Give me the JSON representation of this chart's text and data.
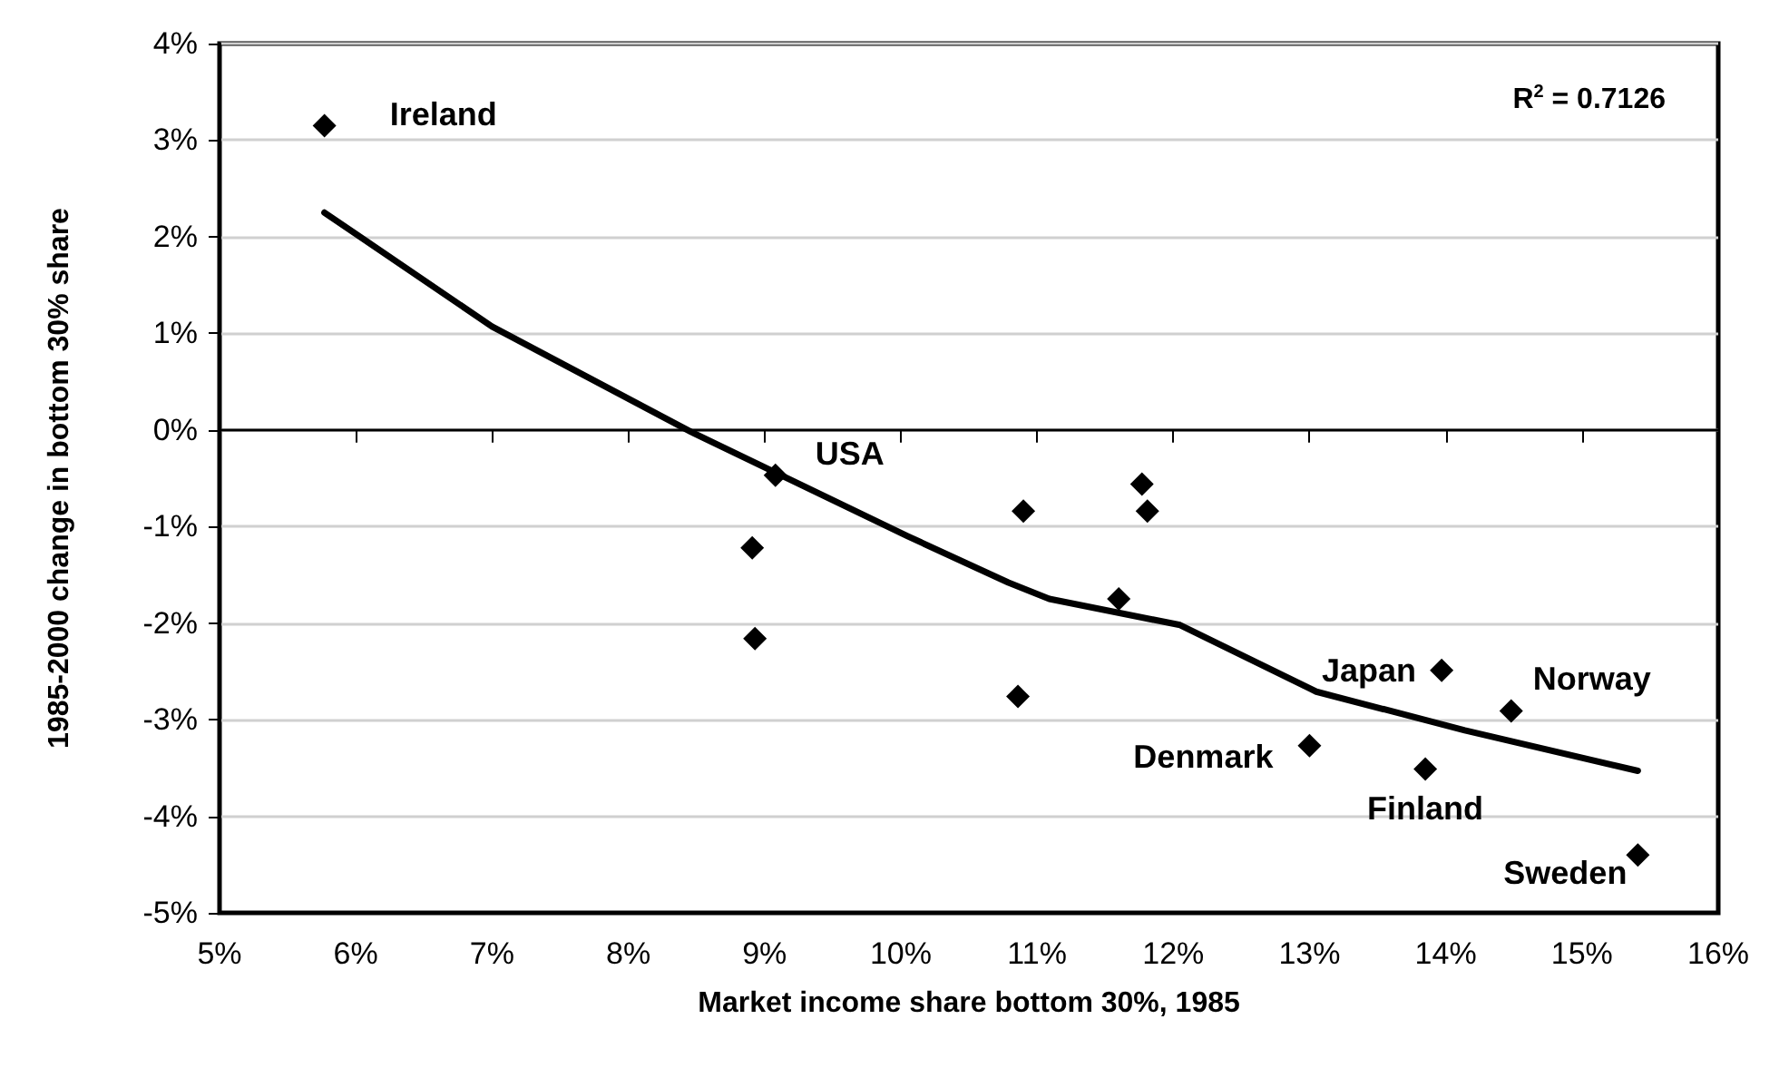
{
  "chart_data": {
    "type": "scatter",
    "xlabel": "Market income share bottom 30%, 1985",
    "ylabel": "1985-2000 change in bottom 30% share",
    "xlim": [
      5,
      16
    ],
    "xticks": [
      {
        "value": 5,
        "label": "5%"
      },
      {
        "value": 6,
        "label": "6%"
      },
      {
        "value": 7,
        "label": "7%"
      },
      {
        "value": 8,
        "label": "8%"
      },
      {
        "value": 9,
        "label": "9%"
      },
      {
        "value": 10,
        "label": "10%"
      },
      {
        "value": 11,
        "label": "11%"
      },
      {
        "value": 12,
        "label": "12%"
      },
      {
        "value": 13,
        "label": "13%"
      },
      {
        "value": 14,
        "label": "14%"
      },
      {
        "value": 15,
        "label": "15%"
      },
      {
        "value": 16,
        "label": "16%"
      }
    ],
    "ylim": [
      -5,
      4
    ],
    "yticks": [
      {
        "value": -5,
        "label": "-5%"
      },
      {
        "value": -4,
        "label": "-4%"
      },
      {
        "value": -3,
        "label": "-3%"
      },
      {
        "value": -2,
        "label": "-2%"
      },
      {
        "value": -1,
        "label": "-1%"
      },
      {
        "value": 0,
        "label": "0%"
      },
      {
        "value": 1,
        "label": "1%"
      },
      {
        "value": 2,
        "label": "2%"
      },
      {
        "value": 3,
        "label": "3%"
      },
      {
        "value": 4,
        "label": "4%"
      }
    ],
    "grid": "y",
    "marker": "diamond",
    "series": [
      {
        "color": "#000000",
        "x": [
          5.77,
          9.08,
          8.91,
          8.93,
          10.9,
          10.86,
          11.77,
          11.81,
          11.6,
          13.97,
          14.48,
          13.0,
          13.85,
          15.41
        ],
        "values": [
          3.15,
          -0.47,
          -1.22,
          -2.16,
          -0.84,
          -2.76,
          -0.56,
          -0.84,
          -1.75,
          -2.49,
          -2.91,
          -3.27,
          -3.51,
          -4.4
        ]
      },
      {
        "type": "line",
        "color": "#000000",
        "marker": "none",
        "line_style": "solid",
        "x": [
          5.77,
          7.0,
          8.46,
          10.05,
          10.79,
          11.09,
          12.05,
          13.05,
          14.14,
          15.41
        ],
        "values": [
          2.25,
          1.07,
          -0.02,
          -1.1,
          -1.58,
          -1.75,
          -2.02,
          -2.71,
          -3.11,
          -3.53
        ]
      }
    ],
    "annotations": [
      {
        "text": "Ireland",
        "x": 5.77,
        "y": 3.15
      },
      {
        "text": "USA",
        "x": 9.08,
        "y": -0.47
      },
      {
        "text": "Japan",
        "x": 13.97,
        "y": -2.49
      },
      {
        "text": "Norway",
        "x": 14.48,
        "y": -2.91
      },
      {
        "text": "Denmark",
        "x": 13.0,
        "y": -3.27
      },
      {
        "text": "Finland",
        "x": 13.85,
        "y": -3.51
      },
      {
        "text": "Sweden",
        "x": 15.41,
        "y": -4.4
      },
      "R$^{2}$ = 0.7126"
    ]
  }
}
